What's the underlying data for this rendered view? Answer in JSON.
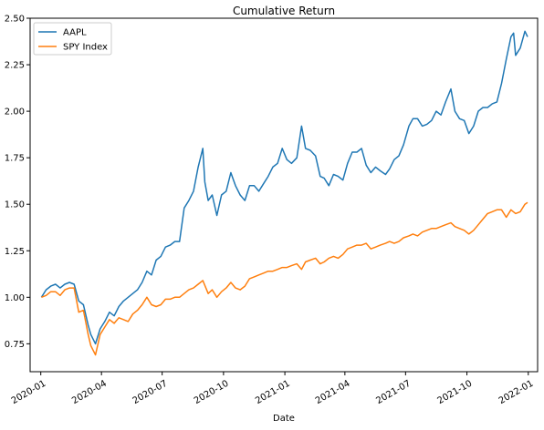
{
  "chart_data": {
    "type": "line",
    "title": "Cumulative Return",
    "xlabel": "Date",
    "ylabel": "",
    "x_range": [
      "2019-12-16",
      "2022-01-15"
    ],
    "ylim": [
      0.6,
      2.5
    ],
    "grid": false,
    "legend_position": "top-left",
    "x_ticks": [
      "2020-01",
      "2020-04",
      "2020-07",
      "2020-10",
      "2021-01",
      "2021-04",
      "2021-07",
      "2021-10",
      "2022-01"
    ],
    "y_ticks": [
      "0.75",
      "1.00",
      "1.25",
      "1.50",
      "1.75",
      "2.00",
      "2.25",
      "2.50"
    ],
    "series": [
      {
        "name": "AAPL",
        "color": "#1f77b4",
        "points": [
          [
            "2020-01-02",
            1.0
          ],
          [
            "2020-01-09",
            1.04
          ],
          [
            "2020-01-16",
            1.06
          ],
          [
            "2020-01-23",
            1.07
          ],
          [
            "2020-01-30",
            1.05
          ],
          [
            "2020-02-06",
            1.07
          ],
          [
            "2020-02-13",
            1.08
          ],
          [
            "2020-02-20",
            1.07
          ],
          [
            "2020-02-27",
            0.98
          ],
          [
            "2020-03-05",
            0.96
          ],
          [
            "2020-03-12",
            0.85
          ],
          [
            "2020-03-16",
            0.8
          ],
          [
            "2020-03-23",
            0.75
          ],
          [
            "2020-03-30",
            0.83
          ],
          [
            "2020-04-06",
            0.87
          ],
          [
            "2020-04-13",
            0.92
          ],
          [
            "2020-04-20",
            0.9
          ],
          [
            "2020-04-27",
            0.95
          ],
          [
            "2020-05-04",
            0.98
          ],
          [
            "2020-05-11",
            1.0
          ],
          [
            "2020-05-18",
            1.02
          ],
          [
            "2020-05-25",
            1.04
          ],
          [
            "2020-06-01",
            1.08
          ],
          [
            "2020-06-08",
            1.14
          ],
          [
            "2020-06-15",
            1.12
          ],
          [
            "2020-06-22",
            1.2
          ],
          [
            "2020-06-29",
            1.22
          ],
          [
            "2020-07-06",
            1.27
          ],
          [
            "2020-07-13",
            1.28
          ],
          [
            "2020-07-20",
            1.3
          ],
          [
            "2020-07-27",
            1.3
          ],
          [
            "2020-08-03",
            1.48
          ],
          [
            "2020-08-10",
            1.52
          ],
          [
            "2020-08-17",
            1.57
          ],
          [
            "2020-08-24",
            1.7
          ],
          [
            "2020-08-31",
            1.8
          ],
          [
            "2020-09-03",
            1.62
          ],
          [
            "2020-09-08",
            1.52
          ],
          [
            "2020-09-14",
            1.55
          ],
          [
            "2020-09-21",
            1.44
          ],
          [
            "2020-09-28",
            1.55
          ],
          [
            "2020-10-05",
            1.57
          ],
          [
            "2020-10-12",
            1.67
          ],
          [
            "2020-10-19",
            1.6
          ],
          [
            "2020-10-26",
            1.55
          ],
          [
            "2020-11-02",
            1.52
          ],
          [
            "2020-11-09",
            1.6
          ],
          [
            "2020-11-16",
            1.6
          ],
          [
            "2020-11-23",
            1.57
          ],
          [
            "2020-11-30",
            1.61
          ],
          [
            "2020-12-07",
            1.65
          ],
          [
            "2020-12-14",
            1.7
          ],
          [
            "2020-12-21",
            1.72
          ],
          [
            "2020-12-28",
            1.8
          ],
          [
            "2021-01-04",
            1.74
          ],
          [
            "2021-01-11",
            1.72
          ],
          [
            "2021-01-19",
            1.75
          ],
          [
            "2021-01-26",
            1.92
          ],
          [
            "2021-02-01",
            1.8
          ],
          [
            "2021-02-08",
            1.79
          ],
          [
            "2021-02-16",
            1.76
          ],
          [
            "2021-02-23",
            1.65
          ],
          [
            "2021-03-01",
            1.64
          ],
          [
            "2021-03-08",
            1.6
          ],
          [
            "2021-03-15",
            1.66
          ],
          [
            "2021-03-22",
            1.65
          ],
          [
            "2021-03-29",
            1.63
          ],
          [
            "2021-04-05",
            1.72
          ],
          [
            "2021-04-12",
            1.78
          ],
          [
            "2021-04-19",
            1.78
          ],
          [
            "2021-04-26",
            1.8
          ],
          [
            "2021-05-03",
            1.71
          ],
          [
            "2021-05-10",
            1.67
          ],
          [
            "2021-05-17",
            1.7
          ],
          [
            "2021-05-24",
            1.68
          ],
          [
            "2021-06-01",
            1.66
          ],
          [
            "2021-06-07",
            1.69
          ],
          [
            "2021-06-14",
            1.74
          ],
          [
            "2021-06-21",
            1.76
          ],
          [
            "2021-06-28",
            1.82
          ],
          [
            "2021-07-06",
            1.92
          ],
          [
            "2021-07-12",
            1.96
          ],
          [
            "2021-07-19",
            1.96
          ],
          [
            "2021-07-26",
            1.92
          ],
          [
            "2021-08-02",
            1.93
          ],
          [
            "2021-08-09",
            1.95
          ],
          [
            "2021-08-16",
            2.0
          ],
          [
            "2021-08-23",
            1.98
          ],
          [
            "2021-08-30",
            2.05
          ],
          [
            "2021-09-07",
            2.12
          ],
          [
            "2021-09-13",
            2.0
          ],
          [
            "2021-09-20",
            1.96
          ],
          [
            "2021-09-27",
            1.95
          ],
          [
            "2021-10-04",
            1.88
          ],
          [
            "2021-10-11",
            1.92
          ],
          [
            "2021-10-18",
            2.0
          ],
          [
            "2021-10-25",
            2.02
          ],
          [
            "2021-11-01",
            2.02
          ],
          [
            "2021-11-08",
            2.04
          ],
          [
            "2021-11-15",
            2.05
          ],
          [
            "2021-11-22",
            2.15
          ],
          [
            "2021-11-29",
            2.28
          ],
          [
            "2021-12-06",
            2.4
          ],
          [
            "2021-12-10",
            2.42
          ],
          [
            "2021-12-13",
            2.3
          ],
          [
            "2021-12-20",
            2.34
          ],
          [
            "2021-12-27",
            2.43
          ],
          [
            "2021-12-31",
            2.4
          ]
        ]
      },
      {
        "name": "SPY Index",
        "color": "#ff7f0e",
        "points": [
          [
            "2020-01-02",
            1.0
          ],
          [
            "2020-01-09",
            1.01
          ],
          [
            "2020-01-16",
            1.03
          ],
          [
            "2020-01-23",
            1.03
          ],
          [
            "2020-01-30",
            1.01
          ],
          [
            "2020-02-06",
            1.04
          ],
          [
            "2020-02-13",
            1.05
          ],
          [
            "2020-02-20",
            1.05
          ],
          [
            "2020-02-27",
            0.92
          ],
          [
            "2020-03-05",
            0.93
          ],
          [
            "2020-03-12",
            0.8
          ],
          [
            "2020-03-16",
            0.74
          ],
          [
            "2020-03-23",
            0.69
          ],
          [
            "2020-03-30",
            0.8
          ],
          [
            "2020-04-06",
            0.84
          ],
          [
            "2020-04-13",
            0.88
          ],
          [
            "2020-04-20",
            0.86
          ],
          [
            "2020-04-27",
            0.89
          ],
          [
            "2020-05-04",
            0.88
          ],
          [
            "2020-05-11",
            0.87
          ],
          [
            "2020-05-18",
            0.91
          ],
          [
            "2020-05-25",
            0.93
          ],
          [
            "2020-06-01",
            0.96
          ],
          [
            "2020-06-08",
            1.0
          ],
          [
            "2020-06-15",
            0.96
          ],
          [
            "2020-06-22",
            0.95
          ],
          [
            "2020-06-29",
            0.96
          ],
          [
            "2020-07-06",
            0.99
          ],
          [
            "2020-07-13",
            0.99
          ],
          [
            "2020-07-20",
            1.0
          ],
          [
            "2020-07-27",
            1.0
          ],
          [
            "2020-08-03",
            1.02
          ],
          [
            "2020-08-10",
            1.04
          ],
          [
            "2020-08-17",
            1.05
          ],
          [
            "2020-08-24",
            1.07
          ],
          [
            "2020-08-31",
            1.09
          ],
          [
            "2020-09-08",
            1.02
          ],
          [
            "2020-09-14",
            1.04
          ],
          [
            "2020-09-21",
            1.0
          ],
          [
            "2020-09-28",
            1.03
          ],
          [
            "2020-10-05",
            1.05
          ],
          [
            "2020-10-12",
            1.08
          ],
          [
            "2020-10-19",
            1.05
          ],
          [
            "2020-10-26",
            1.04
          ],
          [
            "2020-11-02",
            1.06
          ],
          [
            "2020-11-09",
            1.1
          ],
          [
            "2020-11-16",
            1.11
          ],
          [
            "2020-11-23",
            1.12
          ],
          [
            "2020-11-30",
            1.13
          ],
          [
            "2020-12-07",
            1.14
          ],
          [
            "2020-12-14",
            1.14
          ],
          [
            "2020-12-21",
            1.15
          ],
          [
            "2020-12-28",
            1.16
          ],
          [
            "2021-01-04",
            1.16
          ],
          [
            "2021-01-11",
            1.17
          ],
          [
            "2021-01-19",
            1.18
          ],
          [
            "2021-01-26",
            1.15
          ],
          [
            "2021-02-01",
            1.19
          ],
          [
            "2021-02-08",
            1.2
          ],
          [
            "2021-02-16",
            1.21
          ],
          [
            "2021-02-23",
            1.18
          ],
          [
            "2021-03-01",
            1.19
          ],
          [
            "2021-03-08",
            1.21
          ],
          [
            "2021-03-15",
            1.22
          ],
          [
            "2021-03-22",
            1.21
          ],
          [
            "2021-03-29",
            1.23
          ],
          [
            "2021-04-05",
            1.26
          ],
          [
            "2021-04-12",
            1.27
          ],
          [
            "2021-04-19",
            1.28
          ],
          [
            "2021-04-26",
            1.28
          ],
          [
            "2021-05-03",
            1.29
          ],
          [
            "2021-05-10",
            1.26
          ],
          [
            "2021-05-17",
            1.27
          ],
          [
            "2021-05-24",
            1.28
          ],
          [
            "2021-06-01",
            1.29
          ],
          [
            "2021-06-07",
            1.3
          ],
          [
            "2021-06-14",
            1.29
          ],
          [
            "2021-06-21",
            1.3
          ],
          [
            "2021-06-28",
            1.32
          ],
          [
            "2021-07-06",
            1.33
          ],
          [
            "2021-07-12",
            1.34
          ],
          [
            "2021-07-19",
            1.33
          ],
          [
            "2021-07-26",
            1.35
          ],
          [
            "2021-08-02",
            1.36
          ],
          [
            "2021-08-09",
            1.37
          ],
          [
            "2021-08-16",
            1.37
          ],
          [
            "2021-08-23",
            1.38
          ],
          [
            "2021-08-30",
            1.39
          ],
          [
            "2021-09-07",
            1.4
          ],
          [
            "2021-09-13",
            1.38
          ],
          [
            "2021-09-20",
            1.37
          ],
          [
            "2021-09-27",
            1.36
          ],
          [
            "2021-10-04",
            1.34
          ],
          [
            "2021-10-11",
            1.36
          ],
          [
            "2021-10-18",
            1.39
          ],
          [
            "2021-10-25",
            1.42
          ],
          [
            "2021-11-01",
            1.45
          ],
          [
            "2021-11-08",
            1.46
          ],
          [
            "2021-11-15",
            1.47
          ],
          [
            "2021-11-22",
            1.47
          ],
          [
            "2021-11-29",
            1.43
          ],
          [
            "2021-12-06",
            1.47
          ],
          [
            "2021-12-13",
            1.45
          ],
          [
            "2021-12-20",
            1.46
          ],
          [
            "2021-12-27",
            1.5
          ],
          [
            "2021-12-31",
            1.51
          ]
        ]
      }
    ]
  }
}
